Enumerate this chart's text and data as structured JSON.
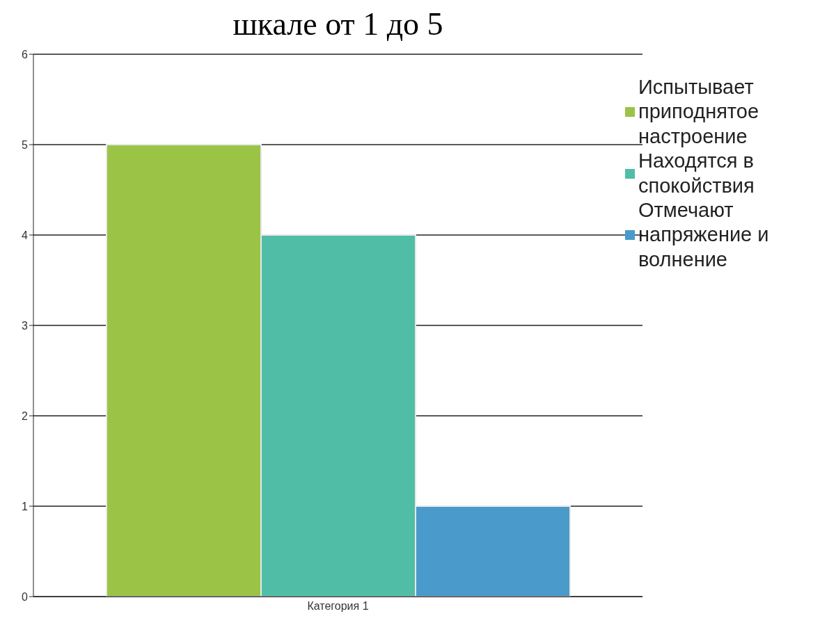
{
  "chart_data": {
    "type": "bar",
    "title": "шкале от 1 до 5",
    "categories": [
      "Категория 1"
    ],
    "series": [
      {
        "name": "Испытывает приподнятое настроение",
        "color": "#9bc447",
        "values": [
          5
        ]
      },
      {
        "name": "Находятся в спокойствия",
        "color": "#50bea6",
        "values": [
          4
        ]
      },
      {
        "name": "Отмечают напряжение и волнение",
        "color": "#4a9acb",
        "values": [
          1
        ]
      }
    ],
    "ylim": [
      0,
      6
    ],
    "yticks": [
      0,
      1,
      2,
      3,
      4,
      5,
      6
    ],
    "grid": "y",
    "legend": "right"
  }
}
